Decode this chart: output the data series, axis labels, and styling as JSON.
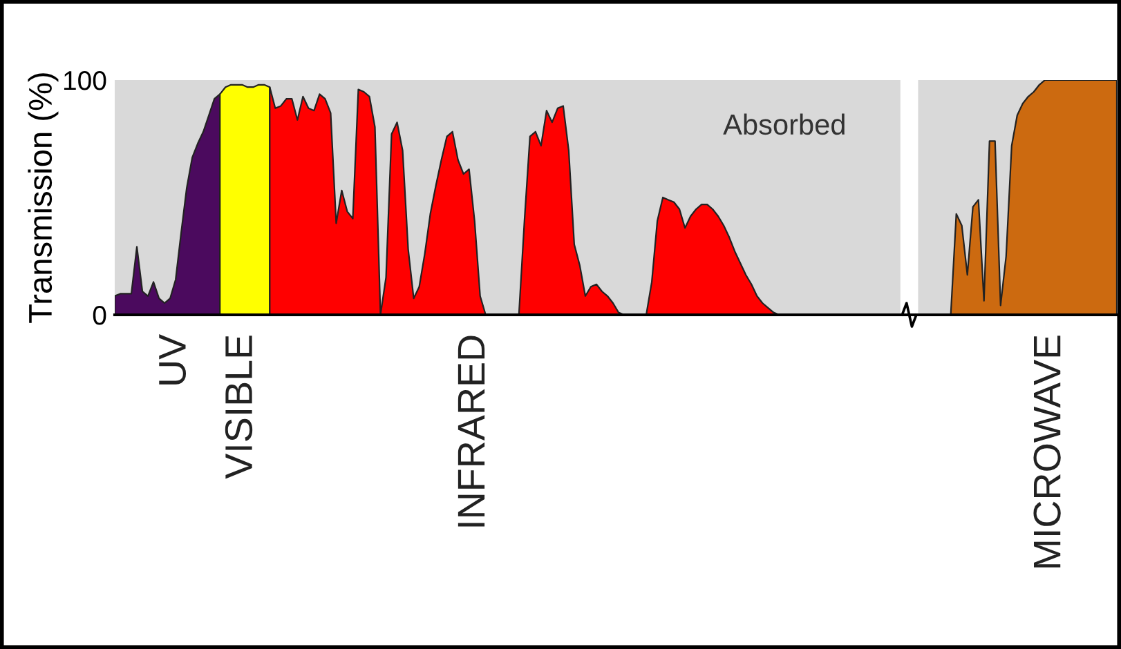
{
  "chart_data": {
    "type": "area",
    "ylabel": "Transmission (%)",
    "ylim": [
      0,
      100
    ],
    "yticks": [
      0,
      100
    ],
    "annotations": [
      "Absorbed"
    ],
    "categories": [
      null,
      null,
      null,
      null,
      null,
      null,
      null,
      null,
      null,
      null,
      null,
      "UV",
      null,
      null,
      null,
      null,
      null,
      null,
      null,
      null,
      null,
      null,
      null,
      "VISIBLE",
      null,
      null,
      null,
      null,
      null,
      null,
      null,
      null,
      null,
      null,
      null,
      null,
      null,
      null,
      null,
      null,
      null,
      null,
      null,
      null,
      null,
      null,
      null,
      null,
      null,
      null,
      null,
      null,
      null,
      null,
      null,
      null,
      null,
      null,
      null,
      null,
      null,
      null,
      null,
      null,
      null,
      "INFRARED",
      null,
      null,
      null,
      null,
      null,
      null,
      null,
      null,
      null,
      null,
      null,
      null,
      null,
      null,
      null,
      null,
      null,
      null,
      null,
      null,
      null,
      null,
      null,
      null,
      null,
      null,
      null,
      null,
      null,
      null,
      null,
      null,
      null,
      null,
      null,
      null,
      null,
      null,
      null,
      null,
      null,
      null,
      null,
      null,
      null,
      null,
      null,
      null,
      null,
      null,
      null,
      null,
      null,
      null,
      null,
      null,
      null,
      null,
      null,
      null,
      null,
      null,
      null,
      null,
      null,
      null,
      null,
      null,
      null,
      null,
      null,
      null,
      null,
      null,
      null,
      null,
      null,
      null,
      null,
      null,
      null,
      null,
      null,
      null,
      null,
      null,
      null,
      null,
      null,
      null,
      null,
      null,
      null,
      null,
      null,
      null,
      null,
      null,
      null,
      null,
      null,
      null,
      null,
      "MICROWAVE",
      null,
      null,
      null,
      null,
      null,
      null,
      null,
      null,
      null,
      null,
      null,
      null
    ],
    "series": [
      {
        "color": "#4b0a5e",
        "values": [
          8,
          9,
          9,
          9,
          29,
          10,
          8,
          14,
          7,
          5,
          7,
          15,
          35,
          54,
          67,
          73,
          78,
          85,
          92,
          94,
          null,
          null,
          null,
          null,
          null,
          null,
          null,
          null,
          null,
          null,
          null,
          null,
          null,
          null,
          null,
          null,
          null,
          null,
          null,
          null,
          null,
          null,
          null,
          null,
          null,
          null,
          null,
          null,
          null,
          null,
          null,
          null,
          null,
          null,
          null,
          null,
          null,
          null,
          null,
          null,
          null,
          null,
          null,
          null,
          null,
          null,
          null,
          null,
          null,
          null,
          null,
          null,
          null,
          null,
          null,
          null,
          null,
          null,
          null,
          null,
          null,
          null,
          null,
          null,
          null,
          null,
          null,
          null,
          null,
          null,
          null,
          null,
          null,
          null,
          null,
          null,
          null,
          null,
          null,
          null,
          null,
          null,
          null,
          null,
          null,
          null,
          null,
          null,
          null,
          null,
          null,
          null,
          null,
          null,
          null,
          null,
          null,
          null,
          null,
          null,
          null,
          null,
          null,
          null,
          null,
          null,
          null,
          null,
          null,
          null,
          null,
          null,
          null,
          null,
          null,
          null,
          null,
          null,
          null,
          null,
          null,
          null,
          null,
          null,
          null,
          null,
          null,
          null,
          null,
          null,
          null,
          null,
          null,
          null,
          null,
          null,
          null,
          null,
          null,
          null,
          null,
          null,
          null,
          null,
          null,
          null,
          null,
          null,
          null,
          null,
          null,
          null,
          null,
          null,
          null,
          null,
          null,
          null,
          null,
          null,
          null,
          null
        ]
      },
      {
        "color": "#ffff00",
        "values": [
          null,
          null,
          null,
          null,
          null,
          null,
          null,
          null,
          null,
          null,
          null,
          null,
          null,
          null,
          null,
          null,
          null,
          null,
          null,
          94,
          97,
          98,
          98,
          98,
          97,
          97,
          98,
          98,
          97,
          null,
          null,
          null,
          null,
          null,
          null,
          null,
          null,
          null,
          null,
          null,
          null,
          null,
          null,
          null,
          null,
          null,
          null,
          null,
          null,
          null,
          null,
          null,
          null,
          null,
          null,
          null,
          null,
          null,
          null,
          null,
          null,
          null,
          null,
          null,
          null,
          null,
          null,
          null,
          null,
          null,
          null,
          null,
          null,
          null,
          null,
          null,
          null,
          null,
          null,
          null,
          null,
          null,
          null,
          null,
          null,
          null,
          null,
          null,
          null,
          null,
          null,
          null,
          null,
          null,
          null,
          null,
          null,
          null,
          null,
          null,
          null,
          null,
          null,
          null,
          null,
          null,
          null,
          null,
          null,
          null,
          null,
          null,
          null,
          null,
          null,
          null,
          null,
          null,
          null,
          null,
          null,
          null,
          null,
          null,
          null,
          null,
          null,
          null,
          null,
          null,
          null,
          null,
          null,
          null,
          null,
          null,
          null,
          null,
          null,
          null,
          null,
          null,
          null,
          null,
          null,
          null,
          null,
          null,
          null,
          null,
          null,
          null,
          null,
          null,
          null,
          null,
          null,
          null,
          null,
          null,
          null,
          null,
          null,
          null,
          null,
          null,
          null,
          null,
          null,
          null,
          null,
          null,
          null,
          null,
          null,
          null,
          null,
          null,
          null,
          null,
          null,
          null
        ]
      },
      {
        "color": "#ff0000",
        "values": [
          null,
          null,
          null,
          null,
          null,
          null,
          null,
          null,
          null,
          null,
          null,
          null,
          null,
          null,
          null,
          null,
          null,
          null,
          null,
          null,
          null,
          null,
          null,
          null,
          null,
          null,
          null,
          null,
          97,
          88,
          89,
          92,
          92,
          83,
          93,
          88,
          87,
          94,
          92,
          86,
          39,
          53,
          44,
          41,
          96,
          95,
          93,
          80,
          0,
          16,
          77,
          82,
          70,
          28,
          7,
          12,
          26,
          43,
          55,
          66,
          76,
          78,
          66,
          60,
          62,
          40,
          8,
          0,
          0,
          0,
          0,
          0,
          0,
          0,
          40,
          76,
          78,
          72,
          87,
          82,
          88,
          89,
          70,
          30,
          21,
          8,
          12,
          13,
          10,
          8,
          5,
          1,
          0,
          0,
          0,
          0,
          0,
          14,
          40,
          50,
          49,
          48,
          45,
          37,
          42,
          45,
          47,
          47,
          45,
          42,
          38,
          33,
          27,
          22,
          17,
          13,
          8,
          5,
          3,
          1,
          0,
          0,
          0,
          0,
          0,
          0,
          0,
          0,
          0,
          0,
          0,
          0,
          0,
          0,
          0,
          0,
          0,
          0,
          0,
          0,
          0,
          0,
          null,
          null,
          null,
          null,
          null,
          null,
          null,
          null,
          null,
          null,
          null,
          null,
          null,
          null,
          null,
          null,
          null,
          null,
          null,
          null,
          null,
          null,
          null,
          null,
          null,
          null,
          null,
          null,
          null,
          null,
          null,
          null,
          null,
          null,
          null,
          null,
          null,
          null,
          null,
          null
        ]
      },
      {
        "color": "#cc6a10",
        "values": [
          null,
          null,
          null,
          null,
          null,
          null,
          null,
          null,
          null,
          null,
          null,
          null,
          null,
          null,
          null,
          null,
          null,
          null,
          null,
          null,
          null,
          null,
          null,
          null,
          null,
          null,
          null,
          null,
          null,
          null,
          null,
          null,
          null,
          null,
          null,
          null,
          null,
          null,
          null,
          null,
          null,
          null,
          null,
          null,
          null,
          null,
          null,
          null,
          null,
          null,
          null,
          null,
          null,
          null,
          null,
          null,
          null,
          null,
          null,
          null,
          null,
          null,
          null,
          null,
          null,
          null,
          null,
          null,
          null,
          null,
          null,
          null,
          null,
          null,
          null,
          null,
          null,
          null,
          null,
          null,
          null,
          null,
          null,
          null,
          null,
          null,
          null,
          null,
          null,
          null,
          null,
          null,
          null,
          null,
          null,
          null,
          null,
          null,
          null,
          null,
          null,
          null,
          null,
          null,
          null,
          null,
          null,
          null,
          null,
          null,
          null,
          null,
          null,
          null,
          null,
          null,
          null,
          null,
          null,
          null,
          null,
          null,
          null,
          null,
          null,
          null,
          null,
          null,
          null,
          null,
          null,
          null,
          null,
          null,
          null,
          null,
          null,
          null,
          null,
          null,
          null,
          null,
          null,
          null,
          null,
          null,
          0,
          0,
          0,
          0,
          0,
          0,
          43,
          38,
          17,
          46,
          49,
          6,
          74,
          74,
          4,
          25,
          72,
          85,
          90,
          93,
          95,
          98,
          100,
          100,
          100,
          100,
          100,
          100,
          100,
          100,
          100,
          100,
          100,
          100,
          100,
          100
        ]
      }
    ]
  }
}
